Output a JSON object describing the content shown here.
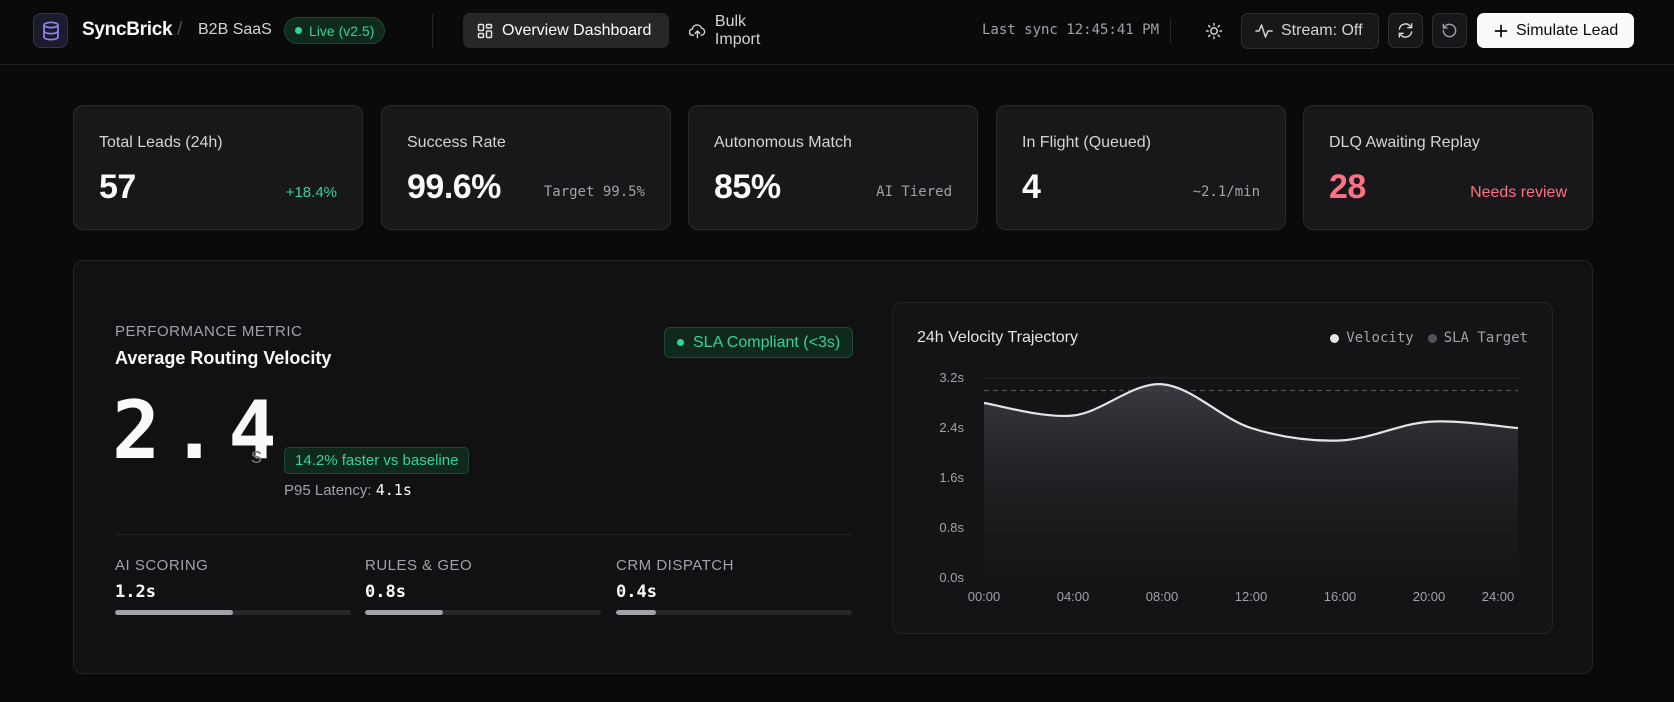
{
  "header": {
    "brand": "SyncBrick",
    "separator": "/",
    "workspace": "B2B SaaS",
    "live_badge": "Live (v2.5)",
    "nav": [
      {
        "label": "Overview Dashboard",
        "icon": "grid-icon",
        "active": true
      },
      {
        "label": "Bulk Import",
        "icon": "cloud-upload-icon",
        "active": false
      }
    ],
    "last_sync": "Last sync 12:45:41 PM",
    "stream_label": "Stream: Off",
    "simulate_label": "Simulate Lead",
    "icons": [
      "database-icon",
      "sun-icon",
      "activity-icon",
      "refresh-icon",
      "undo-icon",
      "plus-icon"
    ]
  },
  "kpis": [
    {
      "label": "Total Leads (24h)",
      "value": "57",
      "sub": "+18.4%",
      "tone": "green"
    },
    {
      "label": "Success Rate",
      "value": "99.6%",
      "sub": "Target 99.5%",
      "tone": "muted"
    },
    {
      "label": "Autonomous Match",
      "value": "85%",
      "sub": "AI Tiered",
      "tone": "muted"
    },
    {
      "label": "In Flight (Queued)",
      "value": "4",
      "sub": "~2.1/min",
      "tone": "muted"
    },
    {
      "label": "DLQ Awaiting Replay",
      "value": "28",
      "sub": "Needs review",
      "tone": "red"
    }
  ],
  "performance": {
    "eyebrow": "PERFORMANCE METRIC",
    "title": "Average Routing Velocity",
    "sla_badge": "SLA Compliant (<3s)",
    "value": "2.4",
    "unit": "s",
    "faster": "14.2% faster vs baseline",
    "p95_label": "P95 Latency:",
    "p95_value": "4.1s",
    "stages": [
      {
        "label": "AI SCORING",
        "value": "1.2s",
        "fill": 0.5
      },
      {
        "label": "RULES & GEO",
        "value": "0.8s",
        "fill": 0.33
      },
      {
        "label": "CRM DISPATCH",
        "value": "0.4s",
        "fill": 0.17
      }
    ]
  },
  "colors": {
    "accent_green": "#34d399",
    "alert_red": "#fb7185",
    "line": "#e4e4e7",
    "sla_line": "#52525b"
  },
  "chart_data": {
    "type": "area",
    "title": "24h Velocity Trajectory",
    "legend": [
      {
        "name": "Velocity",
        "color": "#e4e4e7"
      },
      {
        "name": "SLA Target",
        "color": "#52525b"
      }
    ],
    "legend_position": "top-right",
    "x_ticks": [
      "00:00",
      "04:00",
      "08:00",
      "12:00",
      "16:00",
      "20:00",
      "24:00"
    ],
    "y_ticks": [
      "0.0s",
      "0.8s",
      "1.6s",
      "2.4s",
      "3.2s"
    ],
    "ylim": [
      0,
      3.2
    ],
    "xlim": [
      0,
      24
    ],
    "grid": true,
    "series": [
      {
        "name": "Velocity",
        "x": [
          0,
          4,
          8,
          12,
          16,
          20,
          24
        ],
        "values": [
          2.8,
          2.6,
          3.1,
          2.4,
          2.2,
          2.5,
          2.4
        ]
      },
      {
        "name": "SLA Target",
        "x": [
          0,
          24
        ],
        "values": [
          3.0,
          3.0
        ]
      }
    ]
  }
}
